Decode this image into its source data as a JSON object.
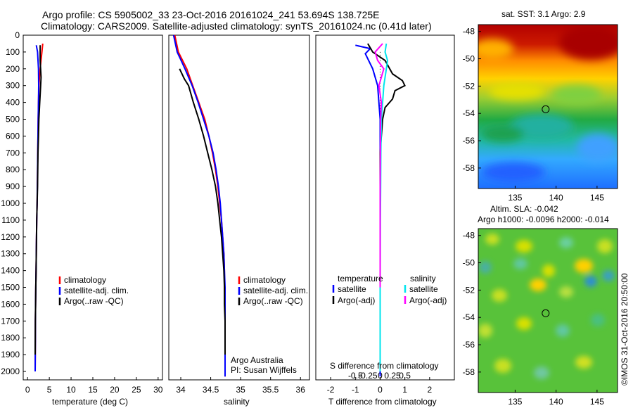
{
  "header": {
    "title_line1": "Argo profile: CS 5905002_33 23-Oct-2016 20161024_241 53.694S 138.725E",
    "title_line2": "Climatology: CARS2009. Satellite-adjusted climatology: synTS_20161024.nc (0.41d later)"
  },
  "colors": {
    "climatology": "#ff0000",
    "satellite_adj": "#0000ff",
    "argo": "#000000",
    "salinity_satellite": "#00e5ee",
    "salinity_argo": "#ff00ff"
  },
  "depth_ticks": [
    "0",
    "100",
    "200",
    "300",
    "400",
    "500",
    "600",
    "700",
    "800",
    "900",
    "1000",
    "1100",
    "1200",
    "1300",
    "1400",
    "1500",
    "1600",
    "1700",
    "1800",
    "1900",
    "2000"
  ],
  "legend_profiles": [
    "climatology",
    "satellite-adj. clim.",
    "Argo(..raw -QC)"
  ],
  "legend_diff": {
    "temperature_title": "temperature",
    "salinity_title": "salinity",
    "items": [
      "satellite",
      "Argo(-adj)",
      "satellite",
      "Argo(-adj)"
    ]
  },
  "credit": {
    "line1": "Argo Australia",
    "line2": "PI: Susan Wijffels"
  },
  "side": {
    "sst_title": "sat. SST: 3.1 Argo: 2.9",
    "sla_title1": "Altim. SLA: -0.042",
    "sla_title2": "Argo h1000: -0.0096 h2000: -0.014",
    "vertical_stamp": "©IMOS 31-Oct-2016 20:50:00"
  },
  "chart_data": [
    {
      "type": "line",
      "xlabel": "temperature (deg C)",
      "xlim": [
        -1,
        31
      ],
      "xticks": [
        0,
        5,
        10,
        15,
        20,
        25,
        30
      ],
      "ylim": [
        0,
        2050
      ],
      "series": [
        {
          "name": "climatology",
          "color": "#ff0000",
          "x": [
            3.5,
            3.3,
            2.9,
            2.6,
            2.5,
            2.45,
            2.4,
            2.35,
            2.3,
            2.25,
            2.2,
            2.1,
            2.05,
            2.0,
            1.95,
            1.9,
            1.85,
            1.8,
            1.8,
            1.75
          ],
          "y": [
            50,
            100,
            200,
            300,
            400,
            500,
            600,
            700,
            800,
            900,
            1000,
            1100,
            1200,
            1300,
            1400,
            1500,
            1600,
            1700,
            1800,
            2000
          ]
        },
        {
          "name": "satellite-adj. clim.",
          "color": "#0000ff",
          "x": [
            2.0,
            2.3,
            2.5,
            2.55,
            2.5,
            2.45,
            2.4,
            2.35,
            2.3,
            2.25,
            2.2,
            2.1,
            2.05,
            2.0,
            1.95,
            1.9,
            1.85,
            1.8,
            1.8,
            1.75
          ],
          "y": [
            60,
            100,
            200,
            300,
            400,
            500,
            600,
            700,
            800,
            900,
            1000,
            1100,
            1200,
            1300,
            1400,
            1500,
            1600,
            1700,
            1800,
            2000
          ]
        },
        {
          "name": "Argo(..raw -QC)",
          "color": "#000000",
          "x": [
            2.9,
            2.9,
            3.1,
            3.0,
            2.8,
            2.6,
            2.5,
            2.4,
            2.35,
            2.3,
            2.2,
            2.1,
            2.05,
            2.0,
            1.95,
            1.9,
            1.85,
            1.8,
            1.75
          ],
          "y": [
            60,
            150,
            250,
            300,
            400,
            500,
            600,
            700,
            800,
            900,
            1000,
            1100,
            1200,
            1300,
            1400,
            1500,
            1600,
            1700,
            1900
          ]
        }
      ]
    },
    {
      "type": "line",
      "xlabel": "salinity",
      "xlim": [
        33.8,
        36.15
      ],
      "xticks": [
        34,
        34.5,
        35,
        35.5,
        36
      ],
      "xticklabels": [
        "34",
        "34.5",
        "35",
        "35.5",
        "36"
      ],
      "ylim": [
        0,
        2050
      ],
      "series": [
        {
          "name": "climatology",
          "color": "#ff0000",
          "x": [
            33.9,
            33.96,
            34.1,
            34.2,
            34.3,
            34.4,
            34.47,
            34.53,
            34.58,
            34.62,
            34.65,
            34.68,
            34.7,
            34.72,
            34.73,
            34.73,
            34.74,
            34.74,
            34.74,
            34.74
          ],
          "y": [
            0,
            100,
            200,
            300,
            400,
            500,
            600,
            700,
            800,
            900,
            1000,
            1100,
            1200,
            1300,
            1400,
            1500,
            1600,
            1700,
            1800,
            2030
          ]
        },
        {
          "name": "satellite-adj. clim.",
          "color": "#0000ff",
          "x": [
            33.88,
            33.94,
            34.07,
            34.19,
            34.29,
            34.38,
            34.47,
            34.54,
            34.59,
            34.63,
            34.66,
            34.68,
            34.7,
            34.72,
            34.73,
            34.74,
            34.74,
            34.74,
            34.74,
            34.74
          ],
          "y": [
            0,
            100,
            200,
            300,
            400,
            500,
            600,
            700,
            800,
            900,
            1000,
            1100,
            1200,
            1300,
            1400,
            1500,
            1600,
            1700,
            1800,
            2030
          ]
        },
        {
          "name": "Argo(..raw -QC)",
          "color": "#000000",
          "x": [
            33.98,
            34.06,
            34.13,
            34.21,
            34.3,
            34.38,
            34.45,
            34.52,
            34.58,
            34.62,
            34.65,
            34.68,
            34.7,
            34.72,
            34.73,
            34.73,
            34.74,
            34.74,
            34.74
          ],
          "y": [
            200,
            260,
            300,
            400,
            500,
            600,
            700,
            800,
            900,
            1000,
            1100,
            1200,
            1300,
            1400,
            1500,
            1600,
            1700,
            1800,
            1900
          ]
        }
      ]
    },
    {
      "type": "line",
      "xlabel": "T difference from climatology",
      "top_xlabel": "S difference from climatology",
      "xlim": [
        -2.6,
        3.0
      ],
      "xticks": [
        -2,
        -1,
        0,
        1,
        2
      ],
      "top_xticks": [
        -0.5,
        -0.25,
        0,
        0.25,
        0.5
      ],
      "ylim": [
        0,
        2050
      ],
      "series": [
        {
          "name": "temperature satellite",
          "color": "#0000ff",
          "x": [
            -1.0,
            -0.4,
            -0.6,
            -0.3,
            -0.1,
            -0.05,
            0,
            0,
            0,
            0,
            0,
            0,
            0,
            0,
            0,
            0,
            0,
            0
          ],
          "y": [
            60,
            80,
            110,
            200,
            300,
            400,
            500,
            700,
            900,
            1000,
            1100,
            1300,
            1500,
            1600,
            1700,
            1800,
            1900,
            2030
          ]
        },
        {
          "name": "temperature Argo(-adj)",
          "color": "#000000",
          "x": [
            -0.5,
            -0.3,
            0.2,
            0.5,
            0.9,
            1.0,
            0.6,
            0.5,
            0.2,
            0.1,
            0.05,
            0,
            0,
            0,
            0,
            0,
            0
          ],
          "y": [
            50,
            100,
            150,
            230,
            270,
            300,
            330,
            380,
            430,
            500,
            600,
            700,
            900,
            1100,
            1300,
            1600,
            1900
          ]
        },
        {
          "name": "salinity satellite",
          "color": "#00e5ee",
          "x": [
            0.25,
            0.2,
            0.3,
            0.25,
            0.15,
            0.1,
            0.05,
            0.03,
            0.02,
            0.01,
            0,
            0
          ],
          "y": [
            50,
            100,
            150,
            200,
            300,
            400,
            500,
            700,
            900,
            1100,
            1500,
            2000
          ]
        },
        {
          "name": "salinity Argo(-adj)",
          "color": "#ff00ff",
          "x": [
            0.1,
            -0.2,
            -0.1,
            0.15,
            0.05,
            -0.05,
            0.05,
            0.02,
            0.01,
            0,
            0,
            0
          ],
          "y": [
            50,
            100,
            150,
            200,
            250,
            300,
            400,
            500,
            700,
            900,
            1100,
            1500
          ]
        }
      ]
    },
    {
      "type": "heatmap",
      "title": "sat. SST: 3.1 Argo: 2.9",
      "xlim": [
        130.5,
        147.5
      ],
      "ylim": [
        -59.5,
        -47.5
      ],
      "xticks": [
        135,
        140,
        145
      ],
      "yticks": [
        -48,
        -50,
        -52,
        -54,
        -56,
        -58
      ],
      "marker": {
        "lon": 138.725,
        "lat": -53.694
      }
    },
    {
      "type": "heatmap",
      "title": "Altim. SLA: -0.042",
      "xlim": [
        130.5,
        147.5
      ],
      "ylim": [
        -59.5,
        -47.5
      ],
      "xticks": [
        135,
        140,
        145
      ],
      "yticks": [
        -48,
        -50,
        -52,
        -54,
        -56,
        -58
      ],
      "marker": {
        "lon": 138.725,
        "lat": -53.694
      }
    }
  ]
}
